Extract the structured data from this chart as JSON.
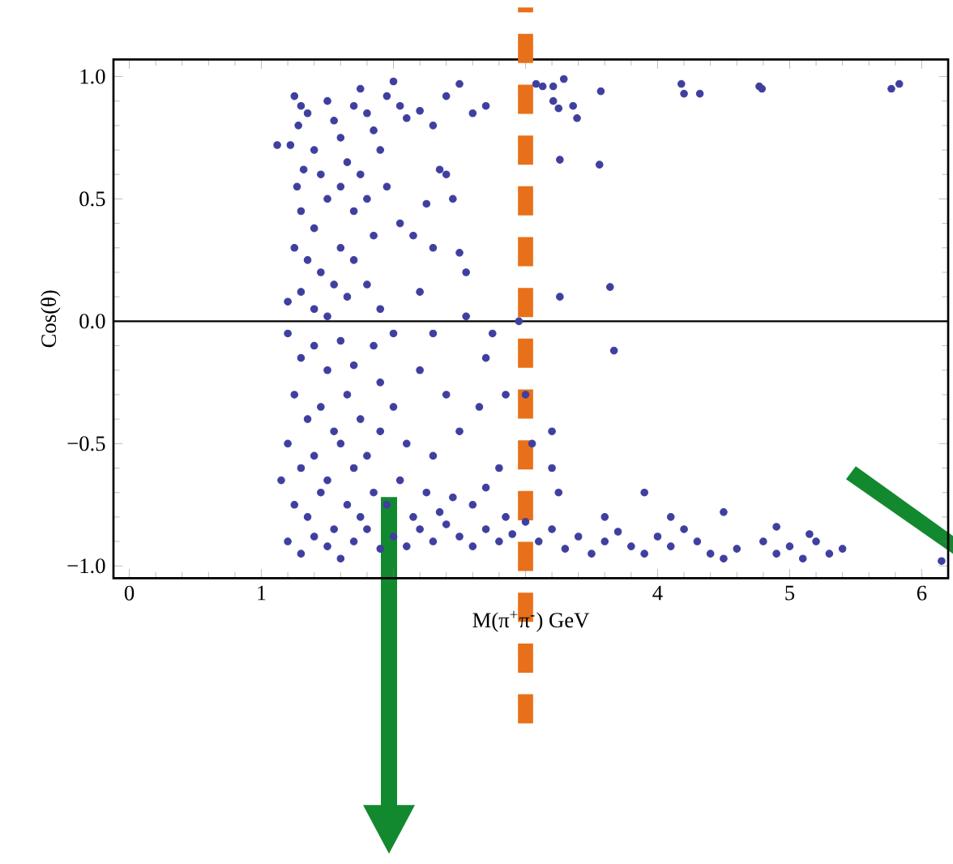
{
  "chart_data": {
    "type": "scatter",
    "xlabel": "M(π$^{+}$π$^{-}$) GeV",
    "ylabel": "Cos(θ)",
    "xlim": [
      -0.12,
      6.2
    ],
    "ylim": [
      -1.05,
      1.07
    ],
    "xticks": [
      0,
      1,
      {
        "value": 2,
        "label": null
      },
      {
        "value": 3,
        "label": null
      },
      4,
      5,
      6
    ],
    "yticks": [
      {
        "value": -1,
        "label": "−1.0"
      },
      {
        "value": -0.5,
        "label": "−0.5"
      },
      {
        "value": 0,
        "label": "0.0"
      },
      {
        "value": 0.5,
        "label": "0.5"
      },
      {
        "value": 1,
        "label": "1.0"
      }
    ],
    "grid": false,
    "series": [
      {
        "color": "#3f3f9f",
        "x": [
          1.25,
          1.3,
          1.28,
          1.35,
          1.22,
          1.4,
          1.32,
          1.27,
          1.45,
          1.5,
          1.55,
          1.6,
          1.65,
          1.7,
          1.75,
          1.8,
          1.85,
          1.9,
          1.95,
          2.0,
          2.05,
          2.1,
          2.2,
          2.3,
          2.4,
          2.5,
          2.6,
          2.7,
          1.12,
          1.3,
          1.4,
          1.5,
          1.6,
          1.7,
          1.75,
          1.8,
          1.25,
          1.35,
          1.45,
          1.55,
          1.6,
          1.7,
          1.85,
          1.95,
          2.05,
          2.15,
          2.3,
          2.5,
          2.55,
          2.45,
          2.25,
          2.35,
          2.4,
          1.2,
          1.3,
          1.4,
          1.5,
          1.65,
          1.8,
          1.9,
          2.2,
          2.55,
          1.2,
          1.3,
          1.4,
          1.5,
          1.6,
          1.7,
          1.85,
          2.0,
          2.3,
          2.75,
          2.95,
          1.25,
          1.35,
          1.45,
          1.55,
          1.65,
          1.75,
          1.9,
          2.0,
          2.2,
          2.4,
          2.7,
          1.2,
          1.3,
          1.4,
          1.5,
          1.6,
          1.7,
          1.8,
          1.9,
          2.1,
          2.3,
          2.5,
          2.8,
          1.15,
          1.25,
          1.35,
          1.45,
          1.55,
          1.65,
          1.75,
          1.85,
          1.95,
          2.05,
          2.15,
          2.25,
          2.35,
          2.45,
          2.6,
          2.7,
          2.85,
          1.2,
          1.3,
          1.4,
          1.5,
          1.6,
          1.7,
          1.8,
          1.9,
          2.0,
          2.1,
          2.2,
          2.3,
          2.4,
          2.5,
          2.6,
          2.7,
          2.8,
          2.9,
          3.0,
          3.1,
          3.2,
          3.3,
          3.4,
          3.5,
          3.6,
          3.7,
          3.8,
          3.9,
          4.0,
          4.1,
          4.2,
          4.3,
          4.4,
          4.5,
          4.6,
          4.8,
          4.9,
          5.0,
          5.1,
          5.2,
          5.3,
          5.4,
          6.15,
          3.25,
          3.2,
          3.9,
          4.5,
          3.05,
          3.2,
          3.0,
          3.6,
          4.1,
          4.9,
          5.15,
          2.65,
          2.85,
          3.26,
          3.56,
          3.26,
          3.64,
          3.67,
          3.08,
          3.13,
          3.21,
          3.29,
          3.21,
          3.25,
          3.36,
          3.39,
          3.57,
          4.18,
          4.2,
          4.32,
          4.77,
          4.79,
          5.77,
          5.83
        ],
        "values": [
          0.92,
          0.88,
          0.8,
          0.85,
          0.72,
          0.7,
          0.62,
          0.55,
          0.6,
          0.9,
          0.82,
          0.75,
          0.65,
          0.88,
          0.95,
          0.85,
          0.78,
          0.7,
          0.92,
          0.98,
          0.88,
          0.83,
          0.86,
          0.8,
          0.92,
          0.97,
          0.85,
          0.88,
          0.72,
          0.45,
          0.38,
          0.5,
          0.55,
          0.45,
          0.6,
          0.5,
          0.3,
          0.25,
          0.2,
          0.15,
          0.3,
          0.25,
          0.35,
          0.55,
          0.4,
          0.35,
          0.3,
          0.28,
          0.2,
          0.5,
          0.48,
          0.62,
          0.6,
          0.08,
          0.12,
          0.05,
          0.02,
          0.1,
          0.15,
          0.05,
          0.12,
          0.02,
          -0.05,
          -0.15,
          -0.1,
          -0.2,
          -0.08,
          -0.18,
          -0.1,
          -0.05,
          -0.05,
          -0.05,
          0.0,
          -0.3,
          -0.4,
          -0.35,
          -0.45,
          -0.3,
          -0.4,
          -0.25,
          -0.35,
          -0.2,
          -0.3,
          -0.15,
          -0.5,
          -0.6,
          -0.55,
          -0.65,
          -0.5,
          -0.6,
          -0.55,
          -0.45,
          -0.5,
          -0.55,
          -0.45,
          -0.6,
          -0.65,
          -0.75,
          -0.8,
          -0.7,
          -0.85,
          -0.75,
          -0.8,
          -0.7,
          -0.75,
          -0.65,
          -0.8,
          -0.7,
          -0.78,
          -0.72,
          -0.75,
          -0.68,
          -0.8,
          -0.9,
          -0.95,
          -0.88,
          -0.92,
          -0.97,
          -0.9,
          -0.85,
          -0.93,
          -0.88,
          -0.92,
          -0.85,
          -0.9,
          -0.83,
          -0.88,
          -0.92,
          -0.85,
          -0.9,
          -0.87,
          -0.82,
          -0.9,
          -0.85,
          -0.93,
          -0.88,
          -0.95,
          -0.9,
          -0.86,
          -0.92,
          -0.95,
          -0.88,
          -0.92,
          -0.85,
          -0.9,
          -0.95,
          -0.97,
          -0.93,
          -0.9,
          -0.95,
          -0.92,
          -0.97,
          -0.9,
          -0.95,
          -0.93,
          -0.98,
          -0.7,
          -0.6,
          -0.7,
          -0.78,
          -0.5,
          -0.45,
          -0.3,
          -0.8,
          -0.8,
          -0.84,
          -0.87,
          -0.35,
          -0.3,
          0.66,
          0.64,
          0.1,
          0.14,
          -0.12,
          0.97,
          0.96,
          0.96,
          0.99,
          0.9,
          0.87,
          0.88,
          0.83,
          0.94,
          0.97,
          0.93,
          0.93,
          0.96,
          0.95,
          0.95,
          0.97
        ]
      }
    ],
    "ref_lines": [
      {
        "axis": "y",
        "value": 0,
        "color": "#000000",
        "line_style": "solid"
      },
      {
        "axis": "x",
        "value": 3,
        "color": "#e8701a",
        "line_style": "dashed"
      }
    ]
  }
}
